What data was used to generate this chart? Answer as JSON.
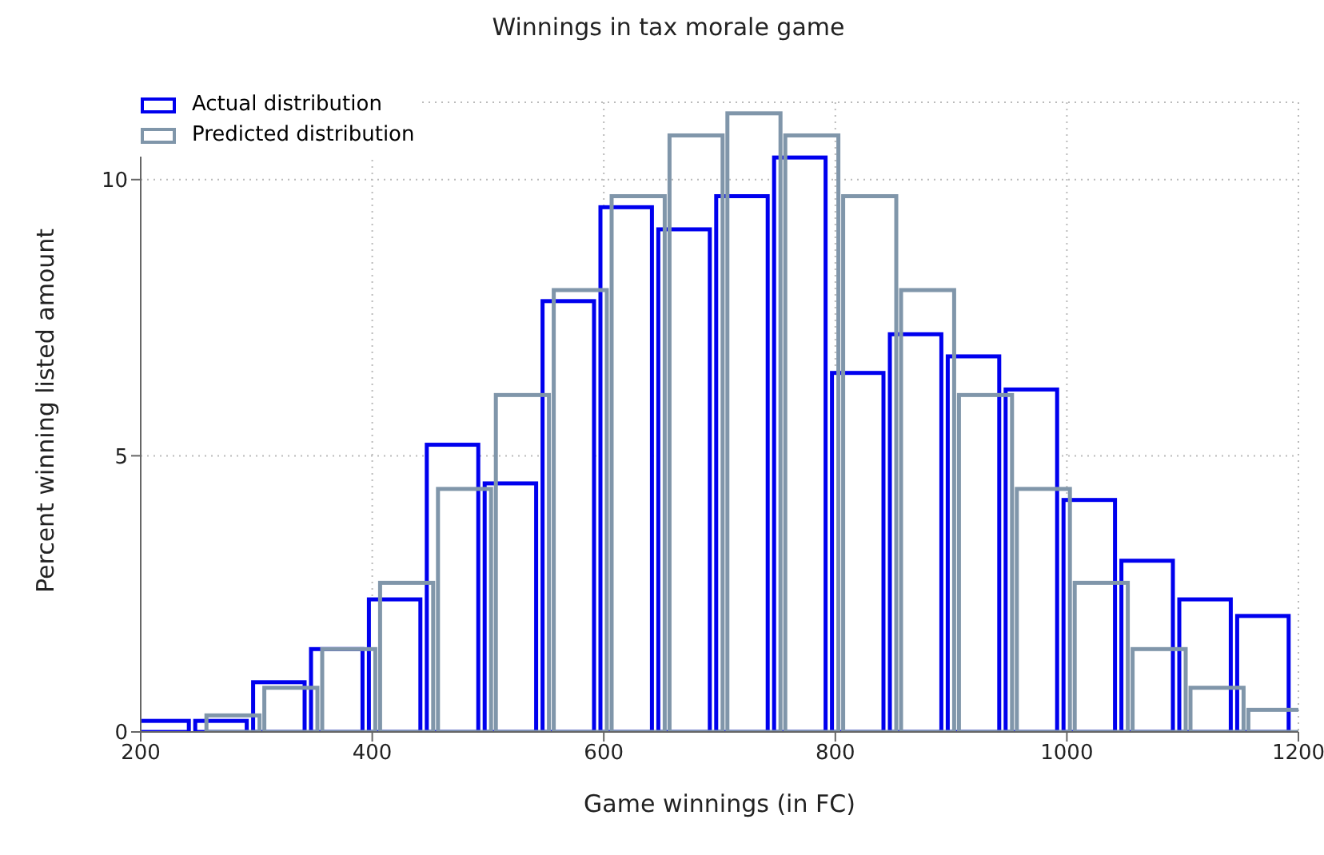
{
  "chart_data": {
    "type": "histogram",
    "title": "Winnings in tax morale game",
    "xlabel": "Game winnings (in FC)",
    "ylabel": "Percent winning listed amount",
    "bins": [
      200,
      250,
      300,
      350,
      400,
      450,
      500,
      550,
      600,
      650,
      700,
      750,
      800,
      850,
      900,
      950,
      1000,
      1050,
      1100,
      1150,
      1200
    ],
    "series": [
      {
        "name": "Actual distribution",
        "color": "#0000ee",
        "values": [
          0.2,
          0.2,
          0.9,
          1.5,
          2.4,
          5.2,
          4.5,
          7.8,
          9.5,
          9.1,
          9.7,
          10.4,
          6.5,
          7.2,
          6.8,
          6.2,
          4.2,
          3.1,
          2.4,
          2.1
        ]
      },
      {
        "name": "Predicted distribution",
        "color": "#8096aa",
        "values": [
          0,
          0.3,
          0.8,
          1.5,
          2.7,
          4.4,
          6.1,
          8.0,
          9.7,
          10.8,
          11.2,
          10.8,
          9.7,
          8.0,
          6.1,
          4.4,
          2.7,
          1.5,
          0.8,
          0.4
        ]
      }
    ],
    "xlim": [
      200,
      1200
    ],
    "xticks": [
      200,
      400,
      600,
      800,
      1000,
      1200
    ],
    "ylim": [
      0,
      11.4
    ],
    "yticks": [
      0,
      5,
      10
    ],
    "grid": true,
    "legend": "top left"
  }
}
